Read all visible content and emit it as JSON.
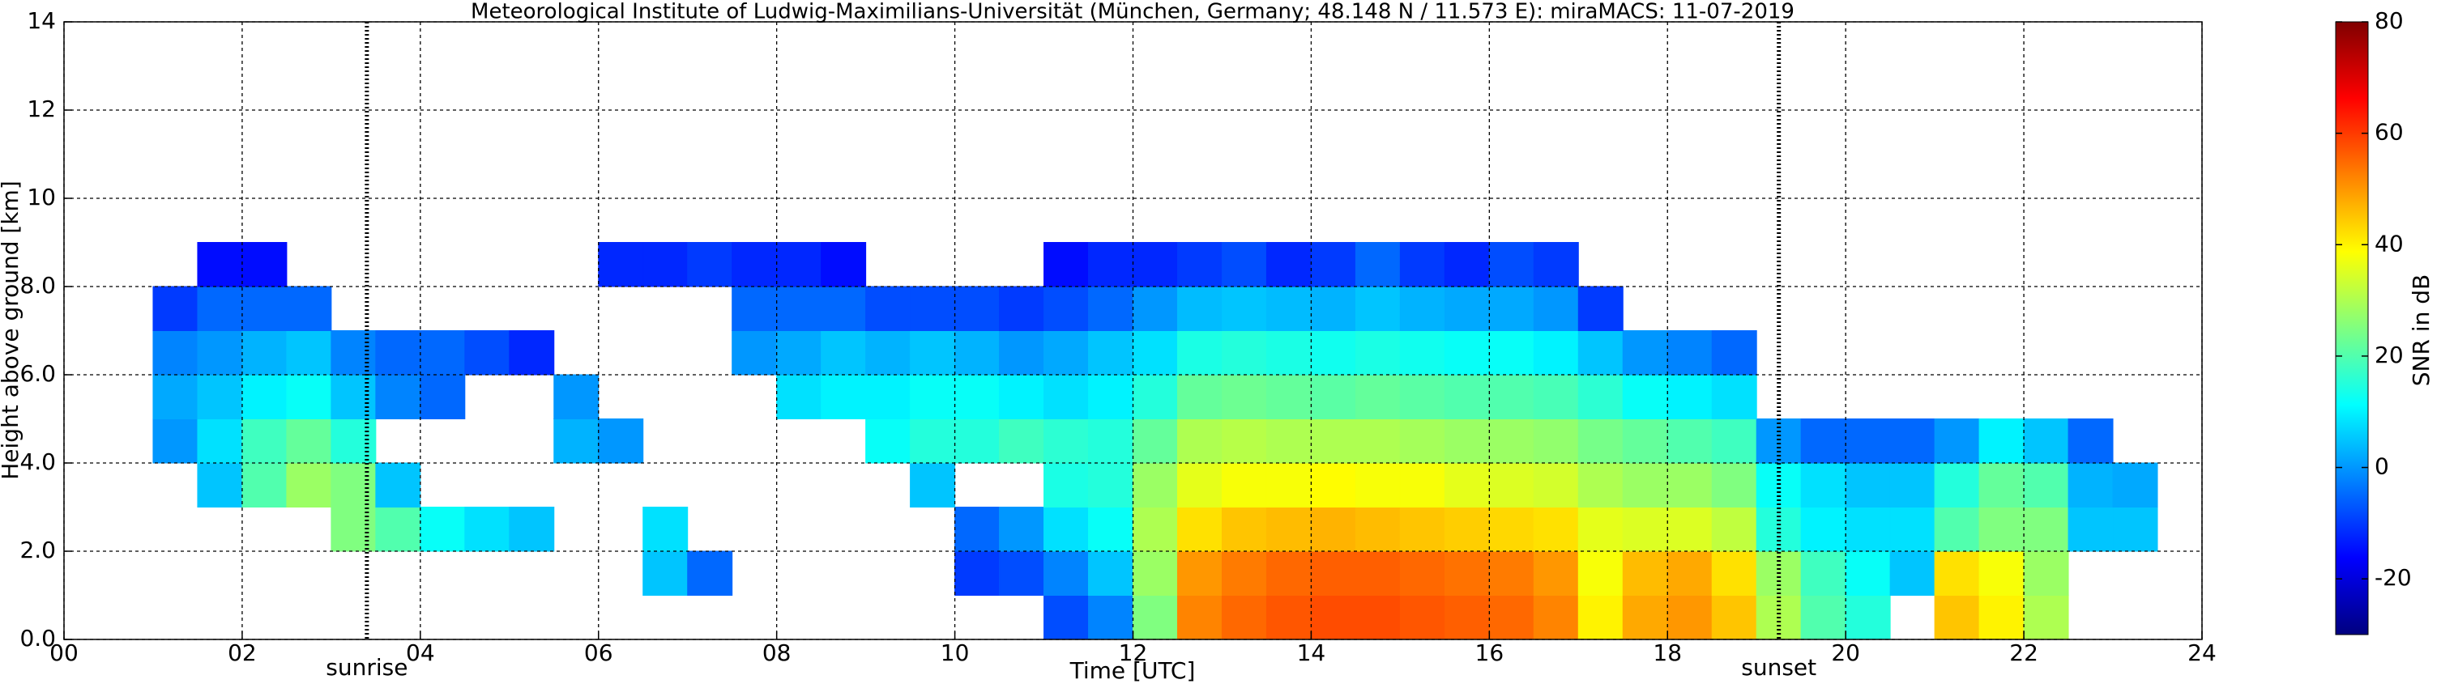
{
  "chart_data": {
    "type": "heatmap",
    "title": "Meteorological Institute of Ludwig-Maximilians-Universität (München, Germany; 48.148 N / 11.573 E):    miraMACS: 11-07-2019",
    "xlabel": "Time [UTC]",
    "ylabel": "Height above ground [km]",
    "colorbar_label": "SNR in dB",
    "colormap": "jet",
    "grid": true,
    "xlim": [
      0,
      24
    ],
    "ylim": [
      0,
      14
    ],
    "zlim": [
      -30,
      80
    ],
    "xticks": [
      {
        "value": 0,
        "label": "00"
      },
      {
        "value": 2,
        "label": "02"
      },
      {
        "value": 4,
        "label": "04"
      },
      {
        "value": 6,
        "label": "06"
      },
      {
        "value": 8,
        "label": "08"
      },
      10,
      12,
      14,
      16,
      18,
      20,
      22,
      24
    ],
    "yticks": [
      {
        "value": 0,
        "label": "0.0"
      },
      {
        "value": 2,
        "label": "2.0"
      },
      {
        "value": 4,
        "label": "4.0"
      },
      {
        "value": 6,
        "label": "6.0"
      },
      {
        "value": 8,
        "label": "8.0"
      },
      10,
      12,
      14
    ],
    "zticks": [
      -20,
      0,
      20,
      40,
      60,
      80
    ],
    "annotations": [
      {
        "x": 3.4,
        "label": "sunrise"
      },
      {
        "x": 19.25,
        "label": "sunset"
      }
    ],
    "x": [
      0,
      0.5,
      1,
      1.5,
      2,
      2.5,
      3,
      3.5,
      4,
      4.5,
      5,
      5.5,
      6,
      6.5,
      7,
      7.5,
      8,
      8.5,
      9,
      9.5,
      10,
      10.5,
      11,
      11.5,
      12,
      12.5,
      13,
      13.5,
      14,
      14.5,
      15,
      15.5,
      16,
      16.5,
      17,
      17.5,
      18,
      18.5,
      19,
      19.5,
      20,
      20.5,
      21,
      21.5,
      22,
      22.5,
      23,
      23.5,
      24
    ],
    "y": [
      0,
      1,
      2,
      3,
      4,
      5,
      6,
      7,
      8,
      9
    ],
    "z": [
      [
        null,
        null,
        null,
        null,
        null,
        null,
        null,
        null,
        null,
        null,
        null,
        null,
        null,
        null,
        null,
        null,
        null,
        null,
        null,
        null,
        null,
        null,
        -8,
        -2,
        25,
        52,
        55,
        57,
        58,
        58,
        57,
        56,
        55,
        52,
        40,
        48,
        50,
        45,
        30,
        20,
        15,
        null,
        45,
        40,
        30,
        null,
        null,
        null
      ],
      [
        null,
        null,
        null,
        null,
        null,
        null,
        null,
        null,
        null,
        null,
        null,
        null,
        null,
        5,
        -5,
        null,
        null,
        null,
        null,
        null,
        -10,
        -8,
        -2,
        5,
        28,
        50,
        53,
        55,
        56,
        56,
        55,
        54,
        53,
        50,
        38,
        46,
        48,
        42,
        28,
        18,
        12,
        5,
        42,
        38,
        28,
        null,
        null,
        null
      ],
      [
        null,
        null,
        null,
        null,
        null,
        null,
        25,
        20,
        12,
        8,
        5,
        null,
        null,
        8,
        null,
        null,
        null,
        null,
        null,
        null,
        -5,
        0,
        8,
        12,
        30,
        42,
        45,
        46,
        47,
        46,
        45,
        44,
        43,
        42,
        36,
        35,
        35,
        32,
        15,
        10,
        8,
        8,
        20,
        25,
        25,
        5,
        5,
        null
      ],
      [
        null,
        null,
        null,
        5,
        20,
        28,
        25,
        5,
        null,
        null,
        null,
        null,
        null,
        null,
        null,
        null,
        null,
        null,
        null,
        5,
        null,
        null,
        14,
        15,
        28,
        36,
        38,
        38,
        39,
        38,
        38,
        36,
        35,
        34,
        30,
        28,
        28,
        25,
        12,
        8,
        5,
        5,
        15,
        22,
        20,
        3,
        2,
        null
      ],
      [
        null,
        null,
        0,
        8,
        18,
        22,
        15,
        null,
        null,
        null,
        null,
        3,
        0,
        null,
        null,
        null,
        null,
        null,
        12,
        15,
        15,
        18,
        16,
        15,
        22,
        30,
        31,
        30,
        30,
        30,
        29,
        28,
        28,
        27,
        24,
        22,
        20,
        18,
        0,
        -5,
        -5,
        -5,
        0,
        10,
        5,
        -5,
        null,
        null
      ],
      [
        null,
        null,
        2,
        5,
        10,
        12,
        5,
        -2,
        -5,
        null,
        null,
        0,
        null,
        null,
        null,
        null,
        8,
        10,
        10,
        12,
        12,
        10,
        8,
        10,
        15,
        22,
        23,
        22,
        21,
        22,
        21,
        20,
        20,
        19,
        16,
        12,
        10,
        8,
        null,
        null,
        null,
        null,
        null,
        null,
        null,
        null,
        null,
        null
      ],
      [
        null,
        null,
        -2,
        0,
        3,
        5,
        -2,
        -5,
        -5,
        -8,
        -12,
        null,
        null,
        null,
        null,
        0,
        2,
        5,
        3,
        5,
        3,
        0,
        2,
        5,
        8,
        14,
        15,
        14,
        13,
        14,
        13,
        12,
        12,
        10,
        5,
        0,
        -2,
        -5,
        null,
        null,
        null,
        null,
        null,
        null,
        null,
        null,
        null,
        null
      ],
      [
        null,
        null,
        -10,
        -5,
        -5,
        -5,
        null,
        null,
        null,
        null,
        null,
        null,
        null,
        null,
        null,
        -5,
        -5,
        -5,
        -8,
        -8,
        -8,
        -10,
        -8,
        -5,
        0,
        4,
        5,
        4,
        3,
        5,
        3,
        2,
        2,
        0,
        -10,
        null,
        null,
        null,
        null,
        null,
        null,
        null,
        null,
        null,
        null,
        null,
        null,
        null
      ],
      [
        null,
        null,
        null,
        -15,
        -15,
        null,
        null,
        null,
        null,
        null,
        null,
        null,
        -12,
        -12,
        -10,
        -12,
        -12,
        -15,
        null,
        null,
        null,
        null,
        -15,
        -12,
        -12,
        -10,
        -8,
        -12,
        -10,
        -5,
        -10,
        -12,
        -8,
        -10,
        null,
        null,
        null,
        null,
        null,
        null,
        null,
        null,
        null,
        null,
        null,
        null,
        null,
        null
      ]
    ]
  }
}
